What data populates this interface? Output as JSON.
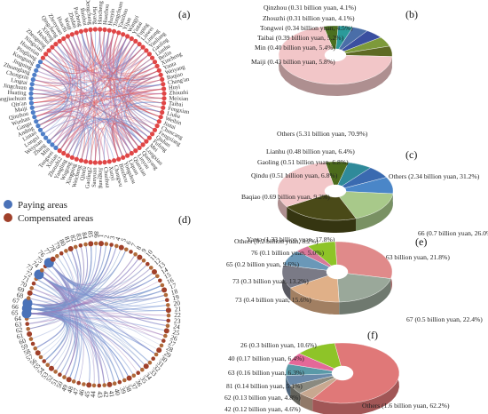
{
  "panels": {
    "a": "(a)",
    "b": "(b)",
    "c": "(c)",
    "d": "(d)",
    "e": "(e)",
    "f": "(f)"
  },
  "legend": {
    "items": [
      {
        "label": "Paying areas",
        "color": "#4a72b8"
      },
      {
        "label": "Compensated areas",
        "color": "#a0402a"
      }
    ]
  },
  "colors": {
    "paying": "#4a72b8",
    "compensated": "#a0402a",
    "red_node": "#e04646",
    "blue_node": "#4f7fc8"
  },
  "chord_a": {
    "nodes": [
      "Pucheng",
      "Baishui",
      "Dengcheng",
      "Heyang",
      "Hancheng",
      "Huazhou",
      "Huayin",
      "Tongchuan",
      "Yaozhou",
      "Yijun",
      "Wangyi",
      "Yintai",
      "Fuping",
      "Linwei",
      "Lintong",
      "Yanliang",
      "Gaoling",
      "Lianhu",
      "Beilin",
      "Xincheng",
      "Yanta",
      "Weiyang",
      "Baqiao",
      "Chang'an",
      "Huyi",
      "Zhouzhi",
      "Meixian",
      "Taibai",
      "Fengxian",
      "Liuba",
      "Weibin",
      "Jintai",
      "Chencang",
      "Fengxiang",
      "Qishan",
      "Fufeng",
      "Mei",
      "Longxian",
      "Qianyang",
      "Linyou",
      "Qianxian",
      "Liquan",
      "Yongshou",
      "Binzhou",
      "Changwu",
      "Xunyi",
      "Chunhua",
      "Jingyang",
      "Sanyuan",
      "Gaoling2",
      "Qindu",
      "Weicheng",
      "Xingping",
      "Wugong",
      "Yangling",
      "Zhouzhi2",
      "Xixian",
      "Tongwei",
      "Min",
      "Zhang",
      "Weiyuan",
      "Longxi",
      "Lintao",
      "Anding",
      "Gangu",
      "Wushan",
      "Qinzhou",
      "Maiji",
      "Qin'an",
      "Zhangjiachuan",
      "Huating",
      "Jingchuan",
      "Lingtai",
      "Chongxin",
      "Zhuanglang",
      "Jingning",
      "Kongtong",
      "Pingliang",
      "Huanxian",
      "Ningxian",
      "Zhengning",
      "Heshui",
      "Xifeng",
      "Qingcheng",
      "Zhenyuan",
      "Huachi",
      "Wuqi",
      "Zhidan"
    ]
  },
  "chord_d": {
    "nodes": [
      "1",
      "2",
      "3",
      "4",
      "5",
      "6",
      "7",
      "8",
      "9",
      "10",
      "11",
      "12",
      "13",
      "14",
      "15",
      "16",
      "17",
      "18",
      "19",
      "20",
      "21",
      "22",
      "23",
      "24",
      "25",
      "26",
      "27",
      "28",
      "29",
      "30",
      "31",
      "32",
      "33",
      "34",
      "35",
      "36",
      "37",
      "38",
      "39",
      "40",
      "41",
      "42",
      "43",
      "44",
      "45",
      "46",
      "47",
      "48",
      "49",
      "50",
      "51",
      "52",
      "53",
      "54",
      "55",
      "56",
      "57",
      "58",
      "59",
      "60",
      "61",
      "62",
      "63",
      "64",
      "65",
      "66",
      "67",
      "68",
      "69",
      "70",
      "71",
      "72",
      "73",
      "74",
      "75",
      "76",
      "77",
      "78",
      "79",
      "80",
      "81",
      "82",
      "83",
      "84",
      "85",
      "86"
    ]
  },
  "chart_data": [
    {
      "panel": "b",
      "type": "pie",
      "title": "",
      "donut": true,
      "categories": [
        "Qinzhou",
        "Zhouzhi",
        "Tongwei",
        "Taibai",
        "Min",
        "Maiji",
        "Others"
      ],
      "values": [
        0.31,
        0.31,
        0.34,
        0.39,
        0.4,
        0.43,
        5.31
      ],
      "percent": [
        4.1,
        4.1,
        4.5,
        5.2,
        5.4,
        5.8,
        70.9
      ],
      "unit": "billion yuan",
      "labels": [
        "Qinzhou (0.31 billion yuan, 4.1%)",
        "Zhouzhi (0.31 billion yuan, 4.1%)",
        "Tongwei (0.34 billion yuan, 4.5%)",
        "Taibai (0.39 billion yuan, 5.2%)",
        "Min (0.40 billion yuan, 5.4%)",
        "Maiji (0.43 billion yuan, 5.8%)",
        "Others (5.31 billion yuan, 70.9%)"
      ],
      "colors": [
        "#4b6f1f",
        "#2b9a9a",
        "#4a6ea8",
        "#3a4fa0",
        "#7d9a3a",
        "#5e6a24",
        "#f2c6c8"
      ]
    },
    {
      "panel": "c",
      "type": "pie",
      "title": "",
      "donut": true,
      "categories": [
        "Lianhu",
        "Gaoling",
        "Qindu",
        "Baqiao",
        "Yanta",
        "Weiyang",
        "Others"
      ],
      "values": [
        0.48,
        0.51,
        0.51,
        0.69,
        1.33,
        1.63,
        2.34
      ],
      "percent": [
        6.4,
        6.8,
        6.8,
        9.2,
        17.8,
        21.8,
        31.2
      ],
      "unit": "billion yuan",
      "labels": [
        "Lianhu (0.48 billion yuan, 6.4%)",
        "Gaoling (0.51 billion yuan, 6.8%)",
        "Qindu (0.51 billion yuan, 6.8%)",
        "Baqiao (0.69 billion yuan, 9.2%)",
        "Yanta (1.33 billion yuan, 17.8%)",
        "Weiyang (1.63 billion yuan, 21.8%)",
        "Others (2.34 billion yuan, 31.2%)"
      ],
      "colors": [
        "#4c6b1c",
        "#2f8a9a",
        "#3a6ab0",
        "#4a86c8",
        "#a8c98a",
        "#4a4a18",
        "#f2c6c8"
      ]
    },
    {
      "panel": "e",
      "type": "pie",
      "title": "",
      "donut": true,
      "categories": [
        "66",
        "67",
        "73",
        "73",
        "65",
        "76",
        "Others"
      ],
      "values": [
        0.7,
        0.5,
        0.4,
        0.3,
        0.2,
        0.1,
        0.2
      ],
      "percent": [
        26.0,
        22.4,
        15.6,
        13.2,
        9.6,
        5.0,
        8.2
      ],
      "unit": "billion yuan",
      "labels": [
        "66 (0.7 billion yuan, 26.0%)",
        "67 (0.5 billion yuan, 22.4%)",
        "73 (0.4 billion yuan, 15.6%)",
        "73 (0.3 billion yuan, 13.2%)",
        "65 (0.2 billion yuan, 9.6%)",
        "76 (0.1 billion yuan, 5.0%)",
        "Others (0.2 billion yuan, 8.2%)"
      ],
      "colors": [
        "#e08a8a",
        "#9aa89a",
        "#e0b088",
        "#7a7a86",
        "#6a98b8",
        "#d8789a",
        "#8ec428"
      ]
    },
    {
      "panel": "f",
      "type": "pie",
      "title": "",
      "donut": true,
      "categories": [
        "Others",
        "42",
        "62",
        "81",
        "63",
        "40",
        "26"
      ],
      "values": [
        1.6,
        0.12,
        0.13,
        0.14,
        0.16,
        0.17,
        0.3
      ],
      "percent": [
        62.2,
        4.6,
        4.8,
        5.1,
        6.3,
        6.4,
        10.6
      ],
      "unit": "billion yuan",
      "labels": [
        "Others (1.6 billion yuan, 62.2%)",
        "42 (0.12 billion yuan, 4.6%)",
        "62 (0.13 billion yuan, 4.8%)",
        "81 (0.14 billion yuan, 5.1%)",
        "63 (0.16 billion yuan, 6.3%)",
        "40 (0.17 billion yuan, 6.4%)",
        "26 (0.3 billion yuan, 10.6%)"
      ],
      "colors": [
        "#e07878",
        "#c8a890",
        "#8a8a80",
        "#6a8aaa",
        "#5a9aa8",
        "#e46898",
        "#8ec428"
      ]
    }
  ]
}
